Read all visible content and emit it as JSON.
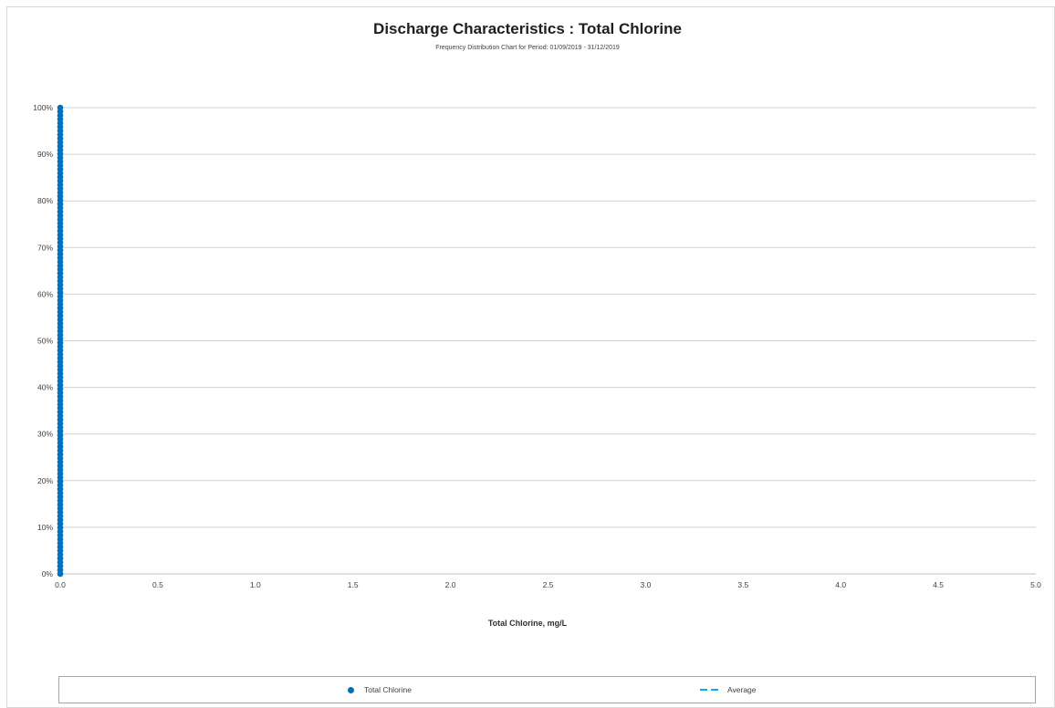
{
  "chart_data": {
    "type": "scatter",
    "title": "Discharge Characteristics : Total Chlorine",
    "subtitle": "Frequency Distribution Chart for Period: 01/09/2019 - 31/12/2019",
    "xlabel": "Total Chlorine, mg/L",
    "ylabel": "",
    "xlim": [
      0.0,
      5.0
    ],
    "ylim": [
      0,
      100
    ],
    "x_ticks": [
      "0.0",
      "0.5",
      "1.0",
      "1.5",
      "2.0",
      "2.5",
      "3.0",
      "3.5",
      "4.0",
      "4.5",
      "5.0"
    ],
    "y_ticks": [
      "0%",
      "10%",
      "20%",
      "30%",
      "40%",
      "50%",
      "60%",
      "70%",
      "80%",
      "90%",
      "100%"
    ],
    "grid": true,
    "legend_position": "bottom",
    "series": [
      {
        "name": "Total Chlorine",
        "color": "#0070c0",
        "marker": "circle",
        "x_constant": 0.0,
        "y_range_percent": [
          0,
          100
        ],
        "point_count": 122
      },
      {
        "name": "Average",
        "color": "#00b0f0",
        "style": "dashed",
        "values": []
      }
    ]
  }
}
